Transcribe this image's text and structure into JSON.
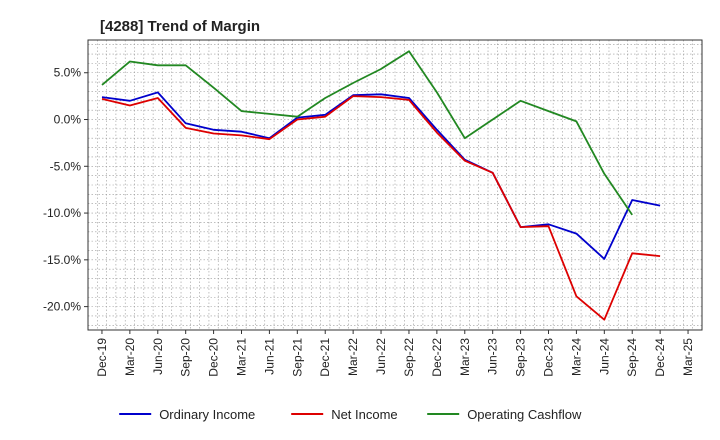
{
  "chart_data": {
    "type": "line",
    "title": "[4288]  Trend of Margin",
    "xlabel": "",
    "ylabel": "",
    "x": [
      "Dec-19",
      "Mar-20",
      "Jun-20",
      "Sep-20",
      "Dec-20",
      "Mar-21",
      "Jun-21",
      "Sep-21",
      "Dec-21",
      "Mar-22",
      "Jun-22",
      "Sep-22",
      "Dec-22",
      "Mar-23",
      "Jun-23",
      "Sep-23",
      "Dec-23",
      "Mar-24",
      "Jun-24",
      "Sep-24",
      "Dec-24",
      "Mar-25"
    ],
    "ylim": [
      -22.5,
      8.5
    ],
    "yticks": [
      5,
      0,
      -5,
      -10,
      -15,
      -20
    ],
    "ytick_labels": [
      "5.0%",
      "0.0%",
      "-5.0%",
      "-10.0%",
      "-15.0%",
      "-20.0%"
    ],
    "grid": true,
    "legend_position": "bottom",
    "series": [
      {
        "name": "Ordinary Income",
        "color": "#0000cc",
        "values": [
          2.4,
          2.0,
          2.9,
          -0.4,
          -1.1,
          -1.3,
          -2.0,
          0.2,
          0.5,
          2.6,
          2.7,
          2.3,
          -1.1,
          -4.3,
          -5.7,
          -11.5,
          -11.2,
          -12.2,
          -14.9,
          -8.6,
          -9.2,
          null
        ]
      },
      {
        "name": "Net Income",
        "color": "#dd0000",
        "values": [
          2.2,
          1.5,
          2.3,
          -0.9,
          -1.5,
          -1.7,
          -2.1,
          0.0,
          0.3,
          2.5,
          2.4,
          2.1,
          -1.4,
          -4.4,
          -5.7,
          -11.5,
          -11.4,
          -18.9,
          -21.4,
          -14.3,
          -14.6,
          null
        ]
      },
      {
        "name": "Operating Cashflow",
        "color": "#228822",
        "values": [
          3.7,
          6.2,
          5.8,
          5.8,
          3.4,
          0.9,
          0.6,
          0.3,
          2.3,
          3.9,
          5.4,
          7.3,
          2.9,
          -2.0,
          0.0,
          2.0,
          0.9,
          -0.2,
          -5.8,
          -10.2,
          null,
          null
        ]
      }
    ]
  }
}
